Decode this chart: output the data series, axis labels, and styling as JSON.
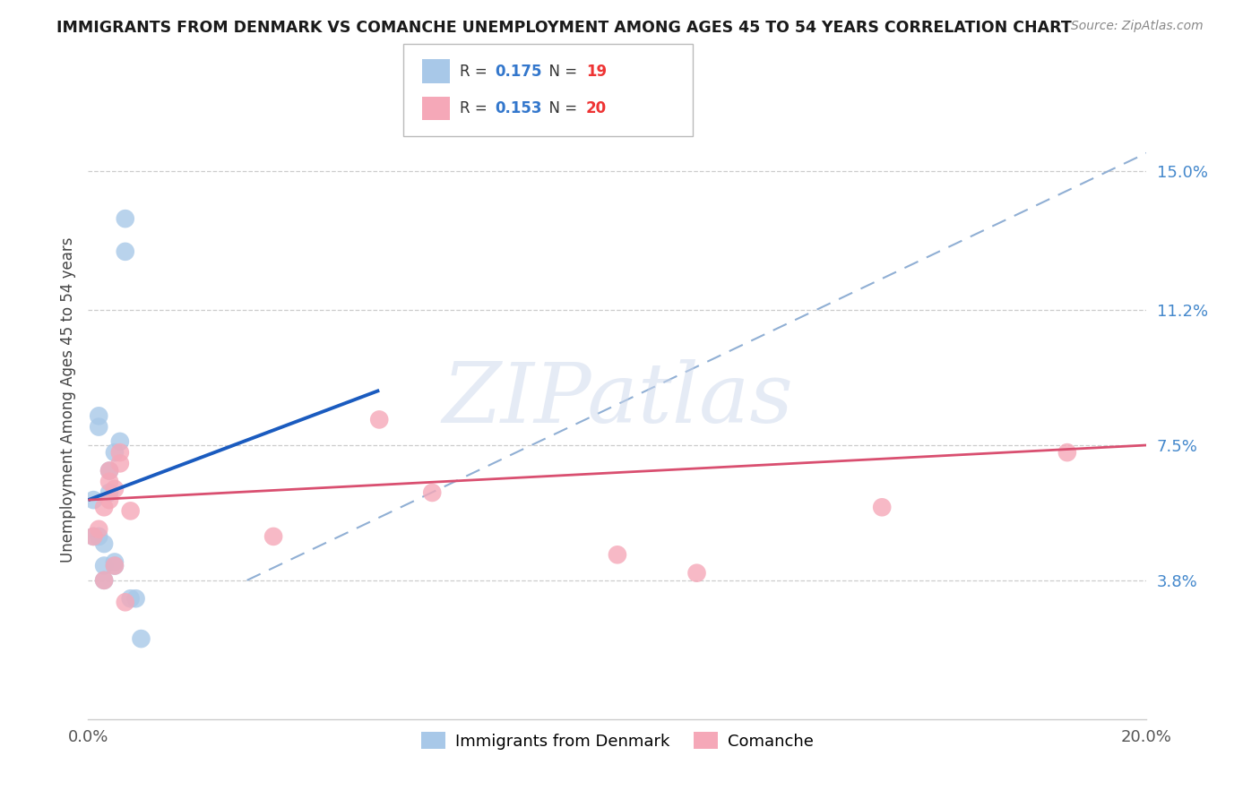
{
  "title": "IMMIGRANTS FROM DENMARK VS COMANCHE UNEMPLOYMENT AMONG AGES 45 TO 54 YEARS CORRELATION CHART",
  "source": "Source: ZipAtlas.com",
  "ylabel": "Unemployment Among Ages 45 to 54 years",
  "xlim": [
    0.0,
    0.2
  ],
  "ylim": [
    0.0,
    0.175
  ],
  "yticks": [
    0.038,
    0.075,
    0.112,
    0.15
  ],
  "ytick_labels": [
    "3.8%",
    "7.5%",
    "11.2%",
    "15.0%"
  ],
  "xticks": [
    0.0,
    0.05,
    0.1,
    0.15,
    0.2
  ],
  "xtick_labels": [
    "0.0%",
    "",
    "",
    "",
    "20.0%"
  ],
  "legend1_R": "0.175",
  "legend1_N": "19",
  "legend2_R": "0.153",
  "legend2_N": "20",
  "legend_label1": "Immigrants from Denmark",
  "legend_label2": "Comanche",
  "denmark_color": "#a8c8e8",
  "comanche_color": "#f5a8b8",
  "denmark_line_color": "#1a5bbf",
  "comanche_line_color": "#d94f70",
  "dashed_line_color": "#90afd4",
  "watermark_text": "ZIPatlas",
  "denmark_x": [
    0.001,
    0.001,
    0.002,
    0.002,
    0.002,
    0.003,
    0.003,
    0.003,
    0.004,
    0.004,
    0.005,
    0.005,
    0.005,
    0.006,
    0.007,
    0.007,
    0.008,
    0.009,
    0.01
  ],
  "denmark_y": [
    0.06,
    0.05,
    0.05,
    0.08,
    0.083,
    0.038,
    0.042,
    0.048,
    0.062,
    0.068,
    0.042,
    0.043,
    0.073,
    0.076,
    0.128,
    0.137,
    0.033,
    0.033,
    0.022
  ],
  "comanche_x": [
    0.001,
    0.002,
    0.003,
    0.003,
    0.004,
    0.004,
    0.004,
    0.005,
    0.005,
    0.006,
    0.006,
    0.007,
    0.008,
    0.035,
    0.055,
    0.065,
    0.1,
    0.115,
    0.15,
    0.185
  ],
  "comanche_y": [
    0.05,
    0.052,
    0.038,
    0.058,
    0.06,
    0.065,
    0.068,
    0.042,
    0.063,
    0.07,
    0.073,
    0.032,
    0.057,
    0.05,
    0.082,
    0.062,
    0.045,
    0.04,
    0.058,
    0.073
  ],
  "denmark_line_x": [
    0.0,
    0.055
  ],
  "denmark_line_y": [
    0.06,
    0.09
  ],
  "comanche_line_x": [
    0.0,
    0.2
  ],
  "comanche_line_y": [
    0.06,
    0.075
  ],
  "dash_line_x": [
    0.03,
    0.2
  ],
  "dash_line_y": [
    0.038,
    0.155
  ]
}
